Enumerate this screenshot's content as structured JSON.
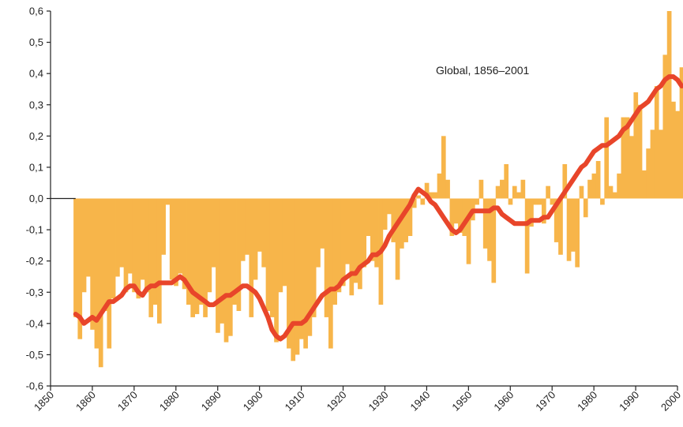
{
  "chart_data": {
    "type": "bar",
    "annotation": "Global, 1856–2001",
    "x_range": [
      1850,
      2000
    ],
    "ylim": [
      -0.6,
      0.6
    ],
    "y_ticks": [
      "0,6",
      "0,5",
      "0,4",
      "0,3",
      "0,2",
      "0,1",
      "0,0",
      "-0,1",
      "-0,2",
      "-0,3",
      "-0,4",
      "-0,5",
      "-0,6"
    ],
    "y_tick_values": [
      0.6,
      0.5,
      0.4,
      0.3,
      0.2,
      0.1,
      0.0,
      -0.1,
      -0.2,
      -0.3,
      -0.4,
      -0.5,
      -0.6
    ],
    "x_ticks": [
      1850,
      1860,
      1870,
      1880,
      1890,
      1900,
      1910,
      1920,
      1930,
      1940,
      1950,
      1960,
      1970,
      1980,
      1990,
      2000
    ],
    "grid": false,
    "bar_color": "#f7b54a",
    "line_color": "#e8452a",
    "annual_series": {
      "x": [
        1856,
        1857,
        1858,
        1859,
        1860,
        1861,
        1862,
        1863,
        1864,
        1865,
        1866,
        1867,
        1868,
        1869,
        1870,
        1871,
        1872,
        1873,
        1874,
        1875,
        1876,
        1877,
        1878,
        1879,
        1880,
        1881,
        1882,
        1883,
        1884,
        1885,
        1886,
        1887,
        1888,
        1889,
        1890,
        1891,
        1892,
        1893,
        1894,
        1895,
        1896,
        1897,
        1898,
        1899,
        1900,
        1901,
        1902,
        1903,
        1904,
        1905,
        1906,
        1907,
        1908,
        1909,
        1910,
        1911,
        1912,
        1913,
        1914,
        1915,
        1916,
        1917,
        1918,
        1919,
        1920,
        1921,
        1922,
        1923,
        1924,
        1925,
        1926,
        1927,
        1928,
        1929,
        1930,
        1931,
        1932,
        1933,
        1934,
        1935,
        1936,
        1937,
        1938,
        1939,
        1940,
        1941,
        1942,
        1943,
        1944,
        1945,
        1946,
        1947,
        1948,
        1949,
        1950,
        1951,
        1952,
        1953,
        1954,
        1955,
        1956,
        1957,
        1958,
        1959,
        1960,
        1961,
        1962,
        1963,
        1964,
        1965,
        1966,
        1967,
        1968,
        1969,
        1970,
        1971,
        1972,
        1973,
        1974,
        1975,
        1976,
        1977,
        1978,
        1979,
        1980,
        1981,
        1982,
        1983,
        1984,
        1985,
        1986,
        1987,
        1988,
        1989,
        1990,
        1991,
        1992,
        1993,
        1994,
        1995,
        1996,
        1997,
        1998,
        1999,
        2000,
        2001
      ],
      "values": [
        -0.38,
        -0.45,
        -0.3,
        -0.25,
        -0.42,
        -0.48,
        -0.54,
        -0.36,
        -0.48,
        -0.32,
        -0.25,
        -0.22,
        -0.3,
        -0.24,
        -0.3,
        -0.32,
        -0.26,
        -0.3,
        -0.38,
        -0.34,
        -0.4,
        -0.18,
        -0.02,
        -0.26,
        -0.28,
        -0.24,
        -0.29,
        -0.34,
        -0.38,
        -0.37,
        -0.34,
        -0.38,
        -0.3,
        -0.22,
        -0.43,
        -0.4,
        -0.46,
        -0.44,
        -0.34,
        -0.36,
        -0.2,
        -0.18,
        -0.38,
        -0.26,
        -0.17,
        -0.22,
        -0.36,
        -0.38,
        -0.46,
        -0.3,
        -0.28,
        -0.48,
        -0.52,
        -0.5,
        -0.45,
        -0.48,
        -0.44,
        -0.38,
        -0.22,
        -0.16,
        -0.38,
        -0.48,
        -0.34,
        -0.3,
        -0.28,
        -0.21,
        -0.31,
        -0.27,
        -0.29,
        -0.22,
        -0.12,
        -0.2,
        -0.22,
        -0.34,
        -0.1,
        -0.05,
        -0.14,
        -0.26,
        -0.16,
        -0.14,
        -0.12,
        -0.03,
        0.01,
        -0.02,
        0.05,
        0.02,
        0.02,
        0.08,
        0.2,
        0.06,
        -0.12,
        -0.08,
        -0.11,
        -0.12,
        -0.21,
        -0.07,
        -0.02,
        0.06,
        -0.16,
        -0.2,
        -0.27,
        0.04,
        0.06,
        0.11,
        -0.02,
        0.04,
        0.02,
        0.06,
        -0.24,
        -0.09,
        -0.02,
        -0.02,
        -0.08,
        0.04,
        -0.02,
        -0.14,
        -0.18,
        0.11,
        -0.2,
        -0.17,
        -0.22,
        0.04,
        -0.06,
        0.06,
        0.08,
        0.12,
        -0.02,
        0.26,
        0.04,
        0.02,
        0.08,
        0.26,
        0.26,
        0.2,
        0.34,
        0.3,
        0.09,
        0.16,
        0.22,
        0.36,
        0.22,
        0.46,
        0.6,
        0.31,
        0.28,
        0.42
      ]
    },
    "smoothed_series": {
      "x": [
        1856,
        1857,
        1858,
        1859,
        1860,
        1861,
        1862,
        1863,
        1864,
        1865,
        1866,
        1867,
        1868,
        1869,
        1870,
        1871,
        1872,
        1873,
        1874,
        1875,
        1876,
        1877,
        1878,
        1879,
        1880,
        1881,
        1882,
        1883,
        1884,
        1885,
        1886,
        1887,
        1888,
        1889,
        1890,
        1891,
        1892,
        1893,
        1894,
        1895,
        1896,
        1897,
        1898,
        1899,
        1900,
        1901,
        1902,
        1903,
        1904,
        1905,
        1906,
        1907,
        1908,
        1909,
        1910,
        1911,
        1912,
        1913,
        1914,
        1915,
        1916,
        1917,
        1918,
        1919,
        1920,
        1921,
        1922,
        1923,
        1924,
        1925,
        1926,
        1927,
        1928,
        1929,
        1930,
        1931,
        1932,
        1933,
        1934,
        1935,
        1936,
        1937,
        1938,
        1939,
        1940,
        1941,
        1942,
        1943,
        1944,
        1945,
        1946,
        1947,
        1948,
        1949,
        1950,
        1951,
        1952,
        1953,
        1954,
        1955,
        1956,
        1957,
        1958,
        1959,
        1960,
        1961,
        1962,
        1963,
        1964,
        1965,
        1966,
        1967,
        1968,
        1969,
        1970,
        1971,
        1972,
        1973,
        1974,
        1975,
        1976,
        1977,
        1978,
        1979,
        1980,
        1981,
        1982,
        1983,
        1984,
        1985,
        1986,
        1987,
        1988,
        1989,
        1990,
        1991,
        1992,
        1993,
        1994,
        1995,
        1996,
        1997,
        1998,
        1999,
        2000,
        2001
      ],
      "values": [
        -0.37,
        -0.38,
        -0.4,
        -0.39,
        -0.38,
        -0.39,
        -0.37,
        -0.35,
        -0.33,
        -0.33,
        -0.32,
        -0.31,
        -0.29,
        -0.28,
        -0.28,
        -0.3,
        -0.31,
        -0.29,
        -0.28,
        -0.28,
        -0.27,
        -0.27,
        -0.27,
        -0.27,
        -0.26,
        -0.25,
        -0.26,
        -0.28,
        -0.3,
        -0.31,
        -0.32,
        -0.33,
        -0.34,
        -0.34,
        -0.33,
        -0.32,
        -0.31,
        -0.31,
        -0.3,
        -0.29,
        -0.28,
        -0.28,
        -0.29,
        -0.3,
        -0.32,
        -0.35,
        -0.38,
        -0.42,
        -0.44,
        -0.45,
        -0.44,
        -0.42,
        -0.4,
        -0.4,
        -0.4,
        -0.39,
        -0.37,
        -0.35,
        -0.33,
        -0.31,
        -0.3,
        -0.29,
        -0.29,
        -0.28,
        -0.26,
        -0.25,
        -0.24,
        -0.24,
        -0.22,
        -0.21,
        -0.2,
        -0.18,
        -0.18,
        -0.17,
        -0.15,
        -0.12,
        -0.1,
        -0.08,
        -0.06,
        -0.04,
        -0.02,
        0.01,
        0.03,
        0.02,
        0.01,
        -0.01,
        -0.02,
        -0.04,
        -0.06,
        -0.08,
        -0.1,
        -0.11,
        -0.1,
        -0.08,
        -0.06,
        -0.04,
        -0.04,
        -0.04,
        -0.04,
        -0.04,
        -0.03,
        -0.03,
        -0.05,
        -0.06,
        -0.07,
        -0.08,
        -0.08,
        -0.08,
        -0.08,
        -0.07,
        -0.07,
        -0.07,
        -0.06,
        -0.06,
        -0.04,
        -0.02,
        0.0,
        0.02,
        0.04,
        0.06,
        0.08,
        0.1,
        0.11,
        0.13,
        0.15,
        0.16,
        0.17,
        0.17,
        0.18,
        0.19,
        0.2,
        0.22,
        0.23,
        0.25,
        0.27,
        0.29,
        0.3,
        0.31,
        0.33,
        0.35,
        0.36,
        0.38,
        0.39,
        0.39,
        0.38,
        0.36
      ]
    }
  }
}
